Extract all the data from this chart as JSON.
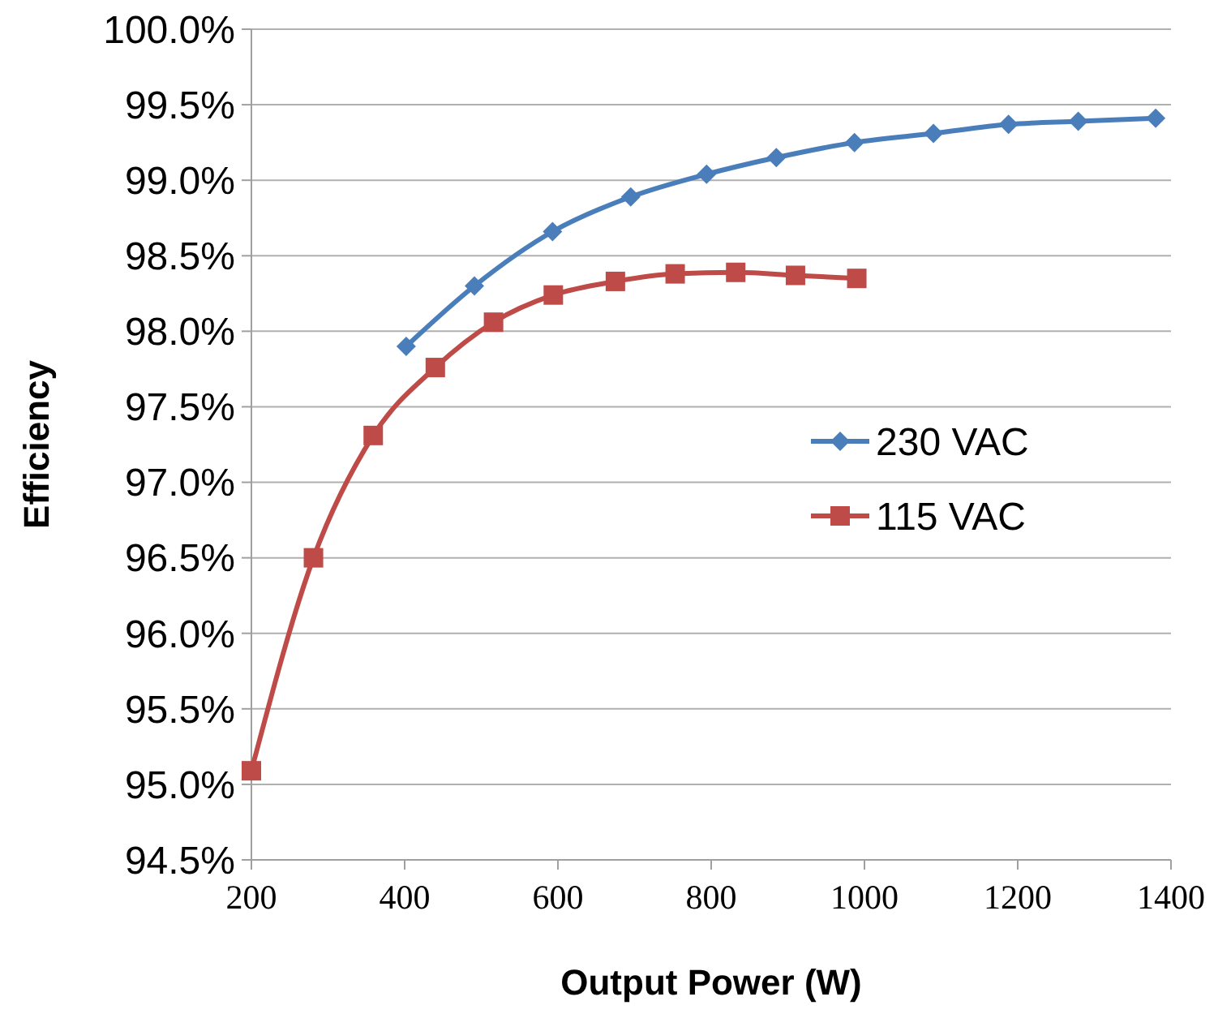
{
  "chart_data": {
    "type": "line",
    "xlabel": "Output Power (W)",
    "ylabel": "Efficiency",
    "xlim": [
      200,
      1400
    ],
    "xticks": [
      200,
      400,
      600,
      800,
      1000,
      1200,
      1400
    ],
    "ylim": [
      94.5,
      100
    ],
    "yticks": [
      {
        "value": 94.5,
        "label": "94.5%"
      },
      {
        "value": 95,
        "label": "95.0%"
      },
      {
        "value": 95.5,
        "label": "95.5%"
      },
      {
        "value": 96,
        "label": "96.0%"
      },
      {
        "value": 96.5,
        "label": "96.5%"
      },
      {
        "value": 97,
        "label": "97.0%"
      },
      {
        "value": 97.5,
        "label": "97.5%"
      },
      {
        "value": 98,
        "label": "98.0%"
      },
      {
        "value": 98.5,
        "label": "98.5%"
      },
      {
        "value": 99,
        "label": "99.0%"
      },
      {
        "value": 99.5,
        "label": "99.5%"
      },
      {
        "value": 100,
        "label": "100.0%"
      }
    ],
    "grid": "y",
    "legend": "right",
    "line_style": "solid",
    "series": [
      {
        "name": "230 VAC",
        "color": "#4a7ebb",
        "marker": "diamond",
        "x": [
          402,
          491,
          593,
          695,
          794,
          885,
          987,
          1090,
          1188,
          1279,
          1380
        ],
        "values": [
          97.9,
          98.3,
          98.66,
          98.89,
          99.04,
          99.15,
          99.25,
          99.31,
          99.37,
          99.39,
          99.41
        ]
      },
      {
        "name": "115 VAC",
        "color": "#be4b48",
        "marker": "square",
        "x": [
          200,
          281,
          359,
          440,
          516,
          594,
          675,
          753,
          832,
          910,
          990
        ],
        "values": [
          95.09,
          96.5,
          97.31,
          97.76,
          98.06,
          98.24,
          98.33,
          98.38,
          98.39,
          98.37,
          98.35
        ]
      }
    ]
  }
}
